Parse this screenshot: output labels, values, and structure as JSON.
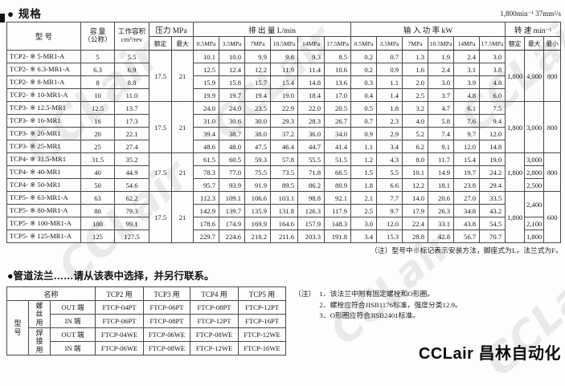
{
  "watermark": "CCLair",
  "conditions": "1,800min⁻¹ 37mm²/s",
  "brand": "CCLair 昌林自动化",
  "spec": {
    "title": "● 规格",
    "note": "（注）型号中※标记表示安装方法，脚座式为L，法兰式为F。",
    "headers": {
      "model": "型  号",
      "capacity": "容 量\n（公称）",
      "displacement": "工作容积\ncm³/rev",
      "pressure": "压力  MPa",
      "discharge": "排  出  量  L/min",
      "power": "输  入  功  率  kW",
      "speed": "转  速  min⁻¹",
      "rated": "额定",
      "max": "最大",
      "min": "最小",
      "mpa_cols": [
        "0.5MPa",
        "3.5MPa",
        "7MPa",
        "10.5MPa",
        "14MPa",
        "17.5MPa"
      ]
    },
    "blocks": [
      {
        "pressure_rated": "17.5",
        "pressure_max": "21",
        "speed_rated": "1,800",
        "speed_min": "800",
        "speed_max": [
          {
            "v": "4,000",
            "span": 4
          }
        ],
        "rows": [
          {
            "model": "TCP2- ※ 5-MR1-A",
            "capacity": "5",
            "displacement": "5.5",
            "discharge": [
              "10.1",
              "10.0",
              "9.9",
              "9.6",
              "9.3",
              "8.5"
            ],
            "power": [
              "0.2",
              "0.7",
              "1.3",
              "1.9",
              "2.4",
              "3.0"
            ]
          },
          {
            "model": "TCP2- ※ 6.3-MR1-A",
            "capacity": "6.3",
            "displacement": "6.9",
            "discharge": [
              "12.5",
              "12.4",
              "12.2",
              "11.9",
              "11.4",
              "10.6"
            ],
            "power": [
              "0.2",
              "0.9",
              "1.6",
              "2.4",
              "3.1",
              "3.8"
            ]
          },
          {
            "model": "TCP2- ※ 8-MR1-A",
            "capacity": "8",
            "displacement": "8.8",
            "discharge": [
              "15.9",
              "15.8",
              "15.7",
              "15.4",
              "14.8",
              "13.6"
            ],
            "power": [
              "0.3",
              "1.1",
              "2.0",
              "3.0",
              "3.9",
              "4.8"
            ]
          },
          {
            "model": "TCP2- ※ 10-MR1-A",
            "capacity": "10",
            "displacement": "11.0",
            "discharge": [
              "19.9",
              "19.7",
              "19.4",
              "19.0",
              "18.4",
              "17.0"
            ],
            "power": [
              "0.4",
              "1.4",
              "2.5",
              "3.7",
              "4.8",
              "6.0"
            ]
          }
        ]
      },
      {
        "pressure_rated": "17.5",
        "pressure_max": "21",
        "speed_rated": "1,800",
        "speed_min": "800",
        "speed_max": [
          {
            "v": "3,000",
            "span": 4
          }
        ],
        "rows": [
          {
            "model": "TCP3- ※ 12.5-MR1",
            "capacity": "12.5",
            "displacement": "13.7",
            "discharge": [
              "24.0",
              "24.0",
              "23.5",
              "22.9",
              "22.0",
              "20.5"
            ],
            "power": [
              "0.5",
              "1.8",
              "3.2",
              "4.7",
              "6.1",
              "7.5"
            ]
          },
          {
            "model": "TCP3- ※ 16-MR1",
            "capacity": "16",
            "displacement": "17.3",
            "discharge": [
              "31.0",
              "30.6",
              "30.0",
              "29.3",
              "28.3",
              "26.7"
            ],
            "power": [
              "0.7",
              "2.3",
              "4.0",
              "5.8",
              "7.6",
              "9.4"
            ]
          },
          {
            "model": "TCP3- ※ 20-MR1",
            "capacity": "20",
            "displacement": "22.1",
            "discharge": [
              "39.4",
              "38.7",
              "38.0",
              "37.2",
              "36.0",
              "34.0"
            ],
            "power": [
              "0.9",
              "2.9",
              "5.2",
              "7.4",
              "9.7",
              "12.0"
            ]
          },
          {
            "model": "TCP3- ※ 25-MR1",
            "capacity": "25",
            "displacement": "27.4",
            "discharge": [
              "48.6",
              "48.0",
              "47.5",
              "46.4",
              "44.7",
              "41.4"
            ],
            "power": [
              "1.1",
              "3.4",
              "6.2",
              "9.1",
              "12.0",
              "14.8"
            ]
          }
        ]
      },
      {
        "pressure_rated": "17.5",
        "pressure_max": "21",
        "speed_rated": "1,800",
        "speed_min": "800",
        "speed_max": [
          {
            "v": "3,000",
            "span": 1
          },
          {
            "v": "2,800",
            "span": 1
          },
          {
            "v": "2,500",
            "span": 1
          }
        ],
        "rows": [
          {
            "model": "TCP4- ※ 31.5-MR1",
            "capacity": "31.5",
            "displacement": "35.2",
            "discharge": [
              "61.5",
              "60.5",
              "59.3",
              "57.8",
              "55.5",
              "51.5"
            ],
            "power": [
              "1.2",
              "4.3",
              "8.0",
              "11.7",
              "15.4",
              "19.0"
            ]
          },
          {
            "model": "TCP4- ※ 40-MR1",
            "capacity": "40",
            "displacement": "44.9",
            "discharge": [
              "78.3",
              "77.0",
              "75.5",
              "73.5",
              "71.8",
              "66.5"
            ],
            "power": [
              "1.5",
              "5.5",
              "10.1",
              "14.9",
              "19.7",
              "24.2"
            ]
          },
          {
            "model": "TCP4- ※ 50-MR1",
            "capacity": "50",
            "displacement": "54.6",
            "discharge": [
              "95.7",
              "93.9",
              "91.9",
              "89.5",
              "86.2",
              "80.9"
            ],
            "power": [
              "1.8",
              "6.6",
              "12.2",
              "18.1",
              "23.8",
              "29.4"
            ]
          }
        ]
      },
      {
        "pressure_rated": "17.5",
        "pressure_max": "21",
        "speed_rated": "1,800",
        "speed_min": "600",
        "speed_max": [
          {
            "v": "2,400",
            "span": 2
          },
          {
            "v": "2,100",
            "span": 1
          },
          {
            "v": "1,800",
            "span": 1
          }
        ],
        "rows": [
          {
            "model": "TCP5- ※ 63-MR1-A",
            "capacity": "63",
            "displacement": "62.2",
            "discharge": [
              "112.3",
              "109.1",
              "106.6",
              "103.1",
              "98.8",
              "92.1"
            ],
            "power": [
              "2.1",
              "7.7",
              "14.0",
              "20.6",
              "27.0",
              "33.5"
            ]
          },
          {
            "model": "TCP5- ※ 80-MR1-A",
            "capacity": "80",
            "displacement": "79.3",
            "discharge": [
              "142.9",
              "139.7",
              "135.9",
              "131.8",
              "126.3",
              "117.9"
            ],
            "power": [
              "2.5",
              "9.7",
              "17.9",
              "26.3",
              "34.8",
              "43.2"
            ]
          },
          {
            "model": "TCP5- ※ 100-MR1-A",
            "capacity": "100",
            "displacement": "99.1",
            "discharge": [
              "178.6",
              "174.9",
              "169.9",
              "164.6",
              "157.9",
              "148.3"
            ],
            "power": [
              "3.0",
              "12.0",
              "22.4",
              "33.1",
              "43.8",
              "54.5"
            ]
          },
          {
            "model": "TCP5- ※ 125-MR1-A",
            "capacity": "125",
            "displacement": "127.5",
            "discharge": [
              "229.7",
              "224.6",
              "218.2",
              "211.6",
              "203.3",
              "191.8"
            ],
            "power": [
              "3.4",
              "15.3",
              "28.8",
              "42.8",
              "56.7",
              "70.7"
            ]
          }
        ]
      }
    ]
  },
  "flange": {
    "title": "●管道法兰……请从该表中选择，并另行联系。",
    "name_header": "名称",
    "cols": [
      "TCP2 用",
      "TCP3 用",
      "TCP4 用",
      "TCP5 用"
    ],
    "left": {
      "model": "型\n号",
      "screw": "螺\n丝\n用",
      "weld": "焊\n接\n用",
      "out": "OUT 端",
      "in": "IN 端"
    },
    "rows": [
      [
        "FTCP-04PT",
        "FTCP-06PT",
        "FTCP-08PT",
        "FTCP-12PT"
      ],
      [
        "FTCP-06PT",
        "FTCP-08PT",
        "FTCP-12PT",
        "FTCP-16PT"
      ],
      [
        "FTCP-04WE",
        "FTCP-06WE",
        "FTCP-08WE",
        "FTCP-12WE"
      ],
      [
        "FTCP-06WE",
        "FTCP-08WE",
        "FTCP-12WE",
        "FTCP-16WE"
      ]
    ],
    "notes_label": "（注）",
    "notes": [
      "1．该法兰中附有固定螺栓和O形圈。",
      "2．螺栓应符合JISB1176标准，强度分类12.9。",
      "3．O形圈应符合JISB2401标准。"
    ]
  }
}
